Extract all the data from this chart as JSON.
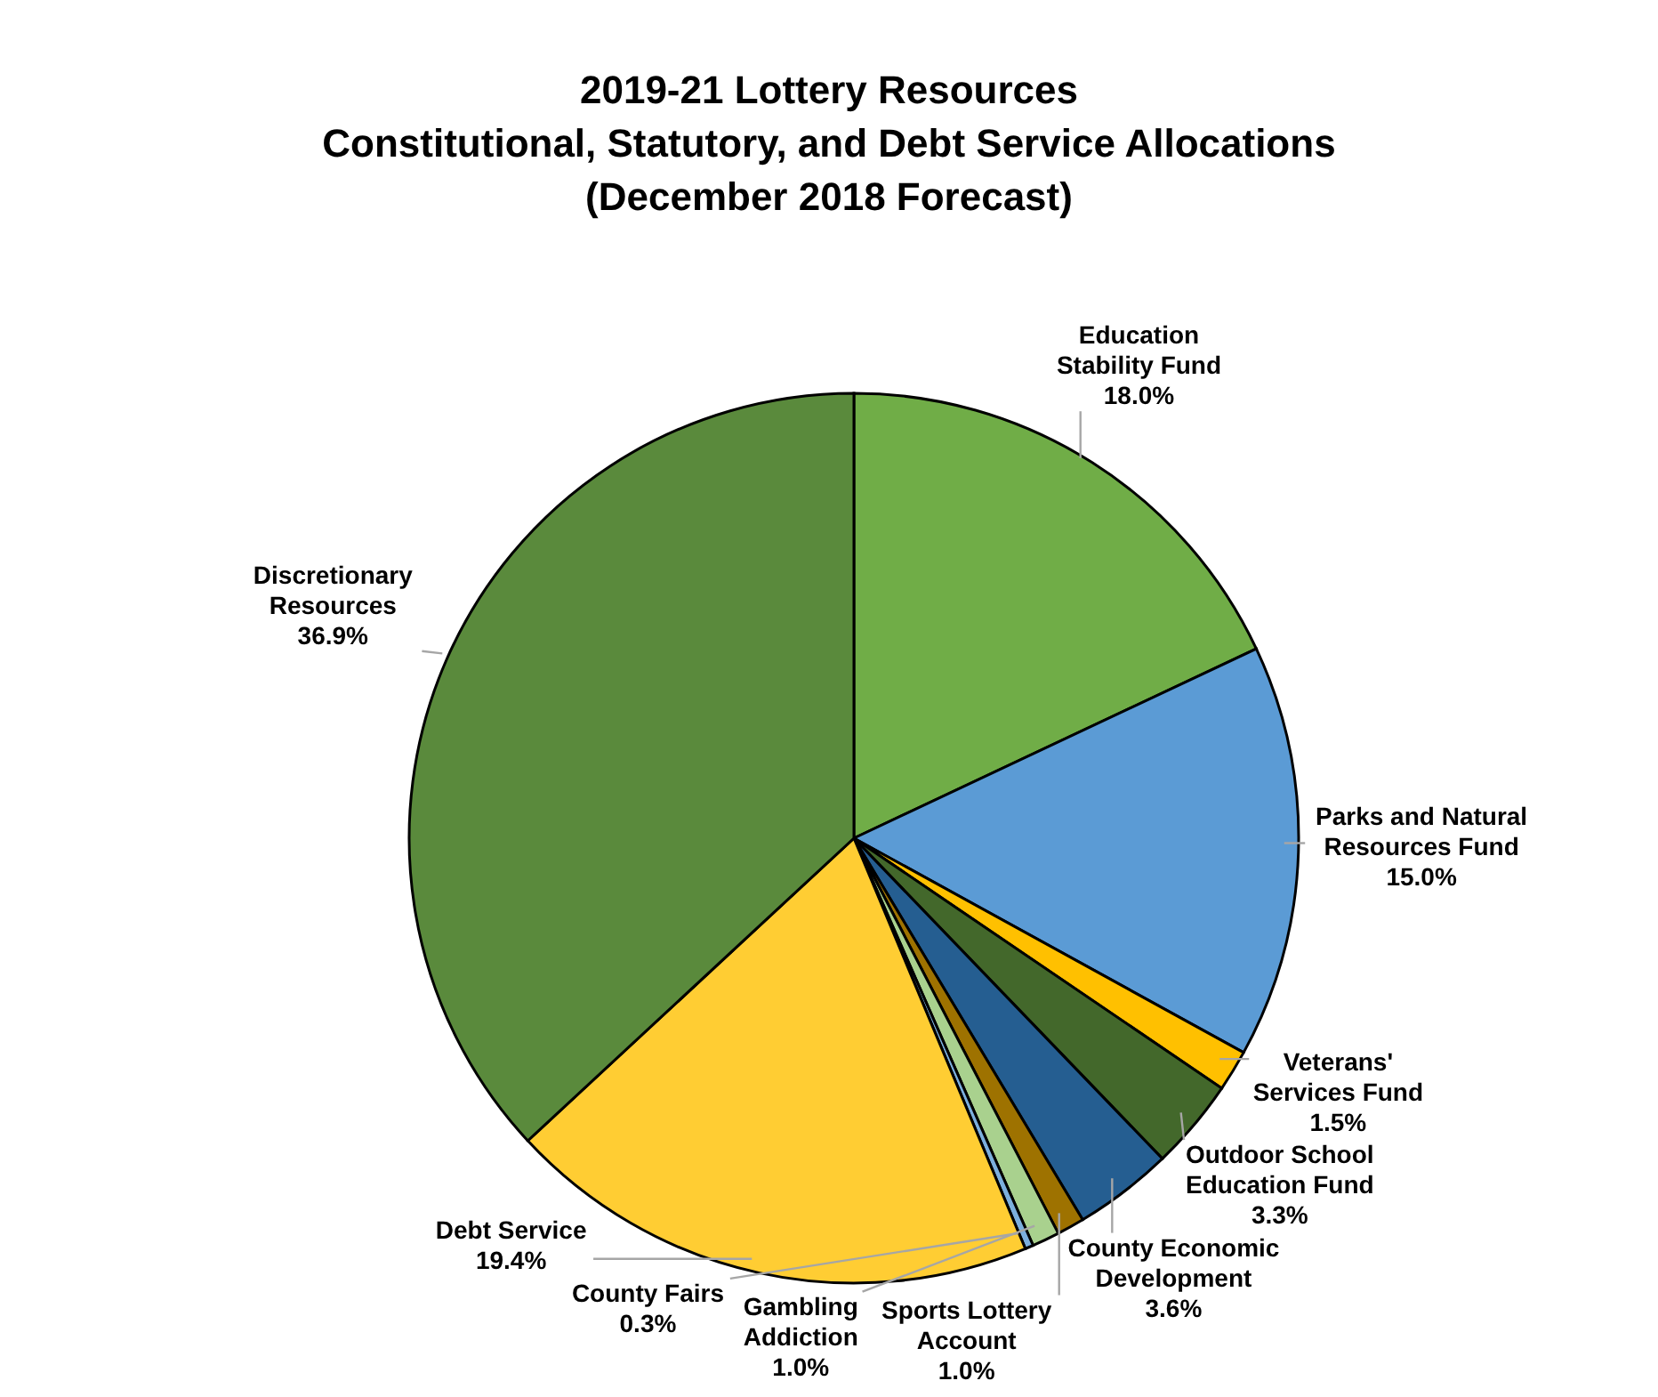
{
  "chart_data": {
    "type": "pie",
    "title": "2019-21 Lottery Resources\nConstitutional, Statutory, and Debt Service Allocations\n(December 2018 Forecast)",
    "categories": [
      "Education Stability Fund",
      "Parks and Natural Resources Fund",
      "Veterans' Services Fund",
      "Outdoor School Education Fund",
      "County Economic Development",
      "Sports Lottery Account",
      "Gambling Addiction",
      "County Fairs",
      "Debt Service",
      "Discretionary Resources"
    ],
    "values": [
      18.0,
      15.0,
      1.5,
      3.3,
      3.6,
      1.0,
      1.0,
      0.3,
      19.4,
      36.9
    ],
    "value_labels": [
      "18.0%",
      "15.0%",
      "1.5%",
      "3.3%",
      "3.6%",
      "1.0%",
      "1.0%",
      "0.3%",
      "19.4%",
      "36.9%"
    ],
    "colors": [
      "#70ad47",
      "#5b9bd5",
      "#ffc000",
      "#43682b",
      "#255e91",
      "#9e7200",
      "#a9d18e",
      "#7cafdd",
      "#ffcd33",
      "#5a8a3c"
    ],
    "legend": false
  }
}
